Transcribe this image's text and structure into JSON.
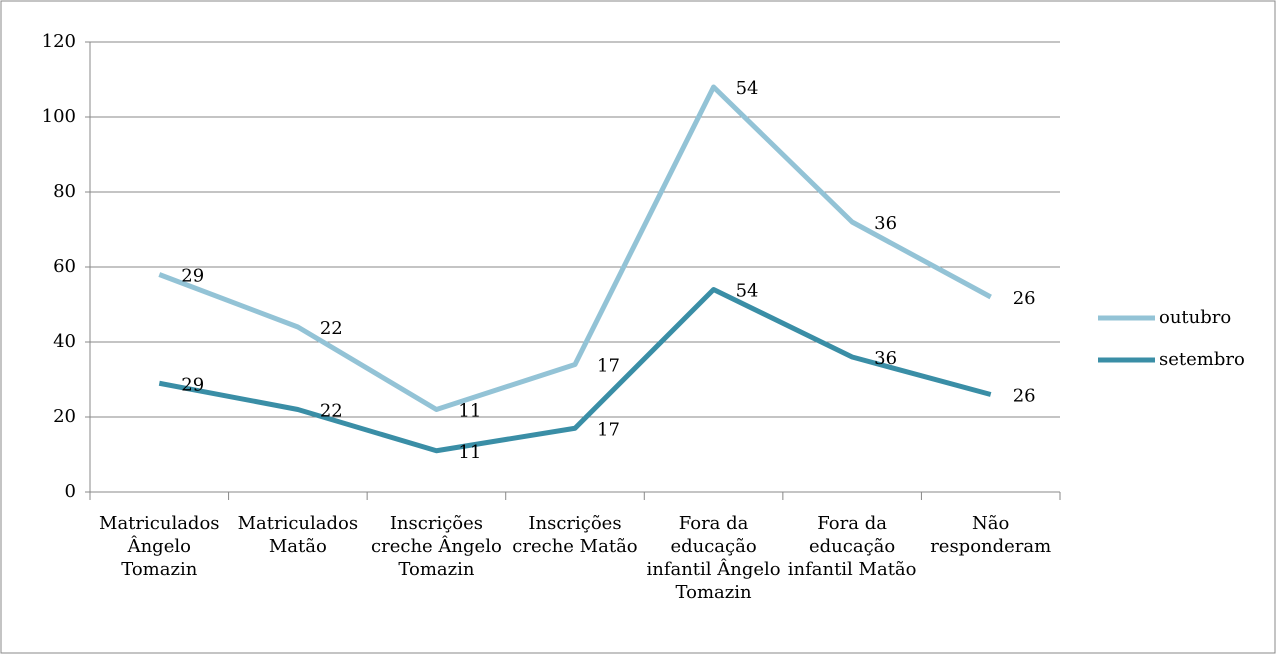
{
  "chart_data": {
    "type": "line",
    "stacked": true,
    "categories": [
      "Matriculados Ângelo Tomazin",
      "Matriculados Matão",
      "Inscrições creche Ângelo Tomazin",
      "Inscrições creche Matão",
      "Fora da educação infantil Ângelo Tomazin",
      "Fora da educação infantil Matão",
      "Não responderam"
    ],
    "series": [
      {
        "name": "setembro",
        "color": "#3a8ea6",
        "values": [
          29,
          22,
          11,
          17,
          54,
          36,
          26
        ]
      },
      {
        "name": "outubro",
        "color": "#93c3d6",
        "values": [
          29,
          22,
          11,
          17,
          54,
          36,
          26
        ]
      }
    ],
    "ylim": [
      0,
      120
    ],
    "yticks": [
      0,
      20,
      40,
      60,
      80,
      100,
      120
    ],
    "grid": true,
    "legend": "right"
  }
}
